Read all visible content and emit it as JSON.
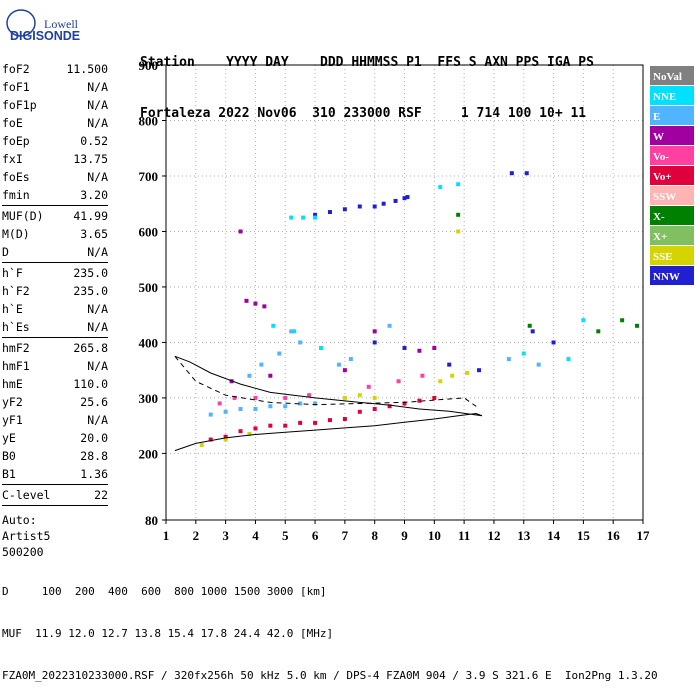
{
  "logo": {
    "line1": "Lowell",
    "line2": "DIGISONDE"
  },
  "header": {
    "row1": "Station    YYYY DAY    DDD HHMMSS P1  FFS S AXN PPS IGA PS",
    "row2": "Fortaleza 2022 Nov06  310 233000 RSF     1 714 100 10+ 11"
  },
  "params": [
    {
      "k": "foF2",
      "v": "11.500"
    },
    {
      "k": "foF1",
      "v": "N/A"
    },
    {
      "k": "foF1p",
      "v": "N/A"
    },
    {
      "k": "foE",
      "v": "N/A"
    },
    {
      "k": "foEp",
      "v": "0.52"
    },
    {
      "k": "fxI",
      "v": "13.75"
    },
    {
      "k": "foEs",
      "v": "N/A"
    },
    {
      "k": "fmin",
      "v": "3.20"
    },
    {
      "k": "MUF(D)",
      "v": "41.99"
    },
    {
      "k": "M(D)",
      "v": "3.65"
    },
    {
      "k": "D",
      "v": "N/A"
    },
    {
      "k": "h`F",
      "v": "235.0"
    },
    {
      "k": "h`F2",
      "v": "235.0"
    },
    {
      "k": "h`E",
      "v": "N/A"
    },
    {
      "k": "h`Es",
      "v": "N/A"
    },
    {
      "k": "hmF2",
      "v": "265.8"
    },
    {
      "k": "hmF1",
      "v": "N/A"
    },
    {
      "k": "hmE",
      "v": "110.0"
    },
    {
      "k": "yF2",
      "v": "25.6"
    },
    {
      "k": "yF1",
      "v": "N/A"
    },
    {
      "k": "yE",
      "v": "20.0"
    },
    {
      "k": "B0",
      "v": "28.8"
    },
    {
      "k": "B1",
      "v": "1.36"
    },
    {
      "k": "C-level",
      "v": "22"
    }
  ],
  "auto": {
    "line1": "Auto:",
    "line2": "Artist5",
    "line3": "500200"
  },
  "bottom": {
    "d_row": "D     100  200  400  600  800 1000 1500 3000 [km]",
    "muf_row": "MUF  11.9 12.0 12.7 13.8 15.4 17.8 24.4 42.0 [MHz]",
    "file_row": "FZA0M_2022310233000.RSF / 320fx256h 50 kHz 5.0 km / DPS-4 FZA0M 904 / 3.9 S 321.6 E  Ion2Png 1.3.20"
  },
  "legend": [
    {
      "label": "NoVal",
      "color": "#808080"
    },
    {
      "label": "NNE",
      "color": "#00e0ff"
    },
    {
      "label": "E",
      "color": "#50b4ff"
    },
    {
      "label": "W",
      "color": "#a000a0"
    },
    {
      "label": "Vo-",
      "color": "#ff40a0"
    },
    {
      "label": "Vo+",
      "color": "#e0003c"
    },
    {
      "label": "SSW",
      "color": "#ffb4b4"
    },
    {
      "label": "X-",
      "color": "#008000"
    },
    {
      "label": "X+",
      "color": "#80c060"
    },
    {
      "label": "SSE",
      "color": "#d4d400"
    },
    {
      "label": "NNW",
      "color": "#2020d0"
    }
  ],
  "chart_data": {
    "type": "scatter",
    "title": "",
    "xlabel": "",
    "ylabel": "",
    "xlim": [
      1,
      17
    ],
    "ylim": [
      80,
      900
    ],
    "xticks": [
      1,
      2,
      3,
      4,
      5,
      6,
      7,
      8,
      9,
      10,
      11,
      12,
      13,
      14,
      15,
      16,
      17
    ],
    "yticks": [
      80,
      200,
      300,
      400,
      500,
      600,
      700,
      800,
      900
    ],
    "grid": "dotted",
    "legend_position": "right",
    "series": [
      {
        "name": "NNW",
        "color": "#2020d0",
        "points": [
          [
            6.0,
            630
          ],
          [
            6.5,
            635
          ],
          [
            7.0,
            640
          ],
          [
            7.5,
            645
          ],
          [
            8.0,
            645
          ],
          [
            8.3,
            650
          ],
          [
            8.7,
            655
          ],
          [
            9.0,
            660
          ],
          [
            9.1,
            662
          ],
          [
            12.6,
            705
          ],
          [
            13.1,
            705
          ],
          [
            8.0,
            400
          ],
          [
            9.0,
            390
          ],
          [
            10.5,
            360
          ],
          [
            11.5,
            350
          ],
          [
            13.3,
            420
          ],
          [
            14.0,
            400
          ]
        ]
      },
      {
        "name": "NNE",
        "color": "#00e0ff",
        "points": [
          [
            5.2,
            625
          ],
          [
            5.6,
            625
          ],
          [
            6.0,
            625
          ],
          [
            10.2,
            680
          ],
          [
            10.8,
            685
          ],
          [
            13.0,
            380
          ],
          [
            14.5,
            370
          ],
          [
            15.0,
            440
          ],
          [
            4.6,
            430
          ],
          [
            5.3,
            420
          ],
          [
            6.2,
            390
          ]
        ]
      },
      {
        "name": "E",
        "color": "#50b4ff",
        "points": [
          [
            2.5,
            270
          ],
          [
            3.0,
            275
          ],
          [
            3.5,
            280
          ],
          [
            4.0,
            280
          ],
          [
            4.5,
            285
          ],
          [
            5.0,
            285
          ],
          [
            5.5,
            290
          ],
          [
            6.0,
            290
          ],
          [
            3.8,
            340
          ],
          [
            4.2,
            360
          ],
          [
            4.8,
            380
          ],
          [
            5.2,
            420
          ],
          [
            5.5,
            400
          ],
          [
            6.8,
            360
          ],
          [
            7.2,
            370
          ],
          [
            8.5,
            430
          ],
          [
            12.5,
            370
          ],
          [
            13.5,
            360
          ]
        ]
      },
      {
        "name": "W",
        "color": "#a000a0",
        "points": [
          [
            3.5,
            600
          ],
          [
            3.7,
            475
          ],
          [
            4.0,
            470
          ],
          [
            4.3,
            465
          ],
          [
            3.2,
            330
          ],
          [
            4.5,
            340
          ],
          [
            7.0,
            350
          ],
          [
            8.0,
            420
          ],
          [
            9.5,
            385
          ],
          [
            10.0,
            390
          ]
        ]
      },
      {
        "name": "Vo-",
        "color": "#ff40a0",
        "points": [
          [
            2.8,
            290
          ],
          [
            3.3,
            300
          ],
          [
            4.0,
            300
          ],
          [
            5.0,
            300
          ],
          [
            5.8,
            305
          ],
          [
            7.8,
            320
          ],
          [
            8.8,
            330
          ],
          [
            9.6,
            340
          ]
        ]
      },
      {
        "name": "Vo+",
        "color": "#e0003c",
        "points": [
          [
            2.5,
            225
          ],
          [
            3.0,
            230
          ],
          [
            3.5,
            240
          ],
          [
            4.0,
            245
          ],
          [
            4.5,
            250
          ],
          [
            5.0,
            250
          ],
          [
            5.5,
            255
          ],
          [
            6.0,
            255
          ],
          [
            6.5,
            260
          ],
          [
            7.0,
            262
          ],
          [
            7.5,
            275
          ],
          [
            8.0,
            280
          ],
          [
            8.5,
            285
          ],
          [
            9.0,
            290
          ],
          [
            9.5,
            295
          ],
          [
            10.0,
            300
          ]
        ]
      },
      {
        "name": "X-",
        "color": "#008000",
        "points": [
          [
            10.8,
            630
          ],
          [
            13.2,
            430
          ],
          [
            15.5,
            420
          ],
          [
            16.3,
            440
          ],
          [
            16.8,
            430
          ]
        ]
      },
      {
        "name": "SSE",
        "color": "#d4d400",
        "points": [
          [
            2.2,
            215
          ],
          [
            3.0,
            225
          ],
          [
            3.8,
            235
          ],
          [
            7.0,
            300
          ],
          [
            7.5,
            305
          ],
          [
            8.0,
            300
          ],
          [
            10.2,
            330
          ],
          [
            10.6,
            340
          ],
          [
            11.1,
            345
          ],
          [
            10.8,
            600
          ]
        ]
      }
    ],
    "profile_curves": [
      {
        "name": "solid",
        "points": [
          [
            1.3,
            205
          ],
          [
            2.0,
            218
          ],
          [
            3.0,
            228
          ],
          [
            4.0,
            234
          ],
          [
            5.0,
            238
          ],
          [
            6.0,
            242
          ],
          [
            7.0,
            246
          ],
          [
            8.0,
            250
          ],
          [
            9.0,
            256
          ],
          [
            10.0,
            262
          ],
          [
            10.8,
            268
          ],
          [
            11.4,
            272
          ],
          [
            11.6,
            268
          ],
          [
            10.5,
            276
          ],
          [
            9.5,
            280
          ],
          [
            8.5,
            287
          ],
          [
            7.5,
            292
          ],
          [
            6.0,
            300
          ],
          [
            4.5,
            310
          ],
          [
            3.5,
            325
          ],
          [
            2.5,
            345
          ],
          [
            1.8,
            365
          ],
          [
            1.3,
            375
          ]
        ]
      },
      {
        "name": "dashed",
        "points": [
          [
            1.3,
            375
          ],
          [
            2.0,
            330
          ],
          [
            3.0,
            305
          ],
          [
            4.5,
            292
          ],
          [
            6.0,
            288
          ],
          [
            7.5,
            290
          ],
          [
            9.0,
            292
          ],
          [
            10.0,
            296
          ],
          [
            11.0,
            300
          ],
          [
            11.4,
            285
          ]
        ]
      }
    ]
  }
}
